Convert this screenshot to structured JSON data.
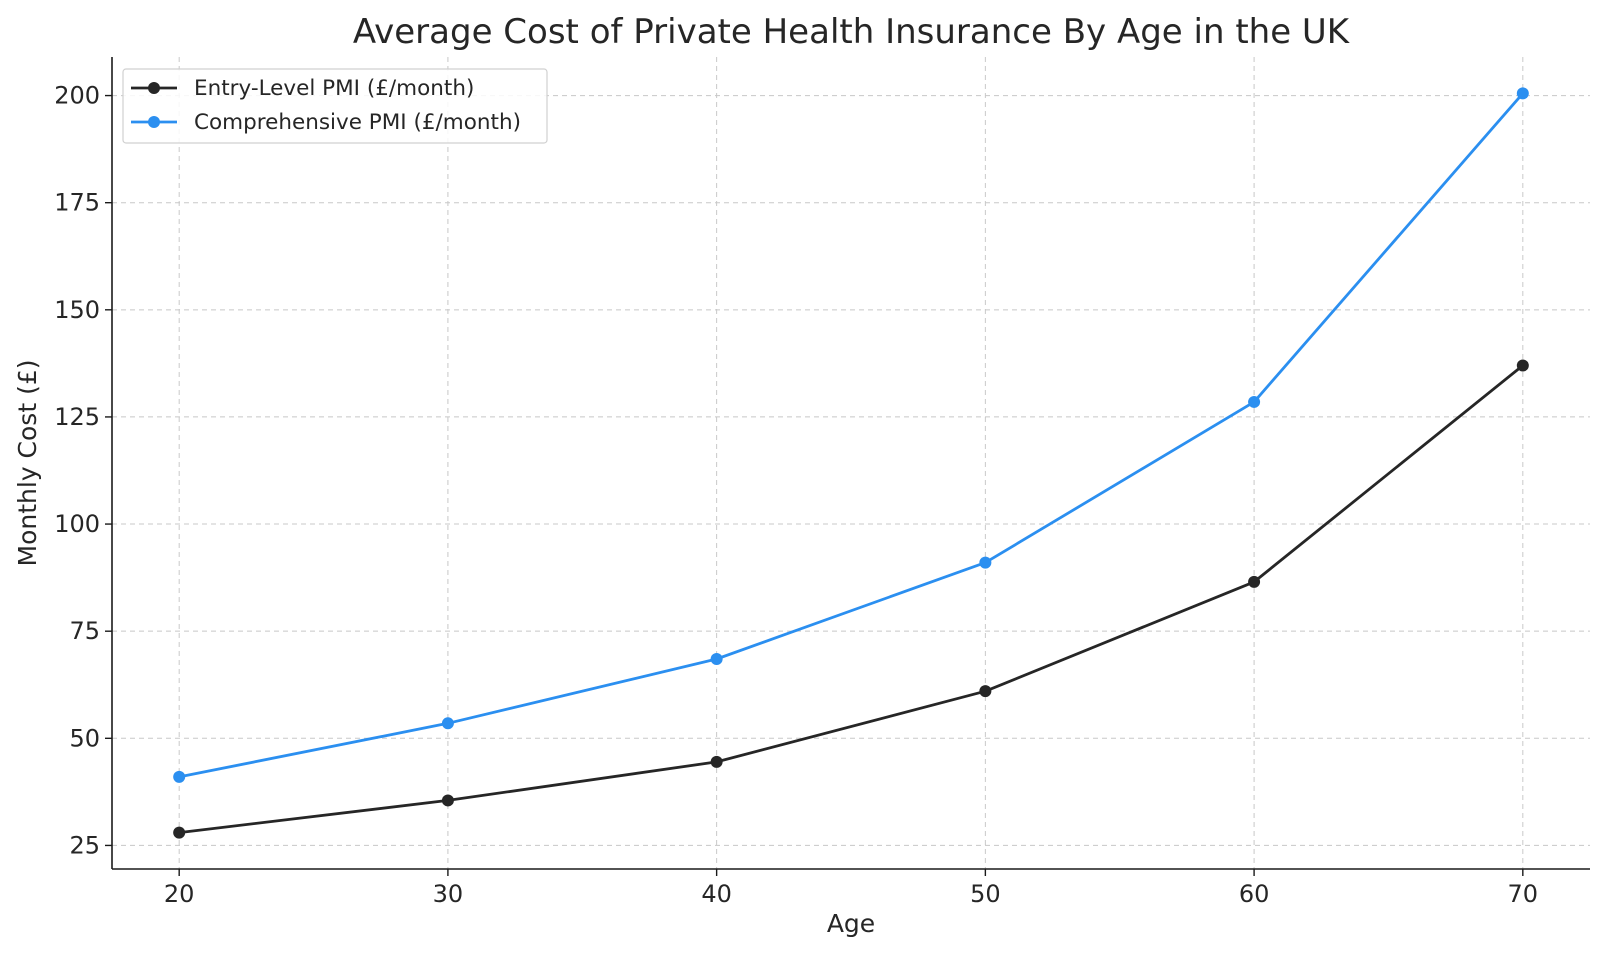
{
  "chart_data": {
    "type": "line",
    "title": "Average Cost of Private Health Insurance By Age in the UK",
    "xlabel": "Age",
    "ylabel": "Monthly Cost (£)",
    "x": [
      20,
      30,
      40,
      50,
      60,
      70
    ],
    "xticks": [
      "20",
      "30",
      "40",
      "50",
      "60",
      "70"
    ],
    "yticks": [
      "25",
      "50",
      "75",
      "100",
      "125",
      "150",
      "175",
      "200"
    ],
    "xlim": [
      17.5,
      72.5
    ],
    "ylim": [
      19.5,
      209
    ],
    "grid": true,
    "legend_position": "top-left",
    "series": [
      {
        "name": "Entry-Level PMI (£/month)",
        "color": "#262626",
        "values": [
          28,
          35.5,
          44.5,
          61,
          86.5,
          137
        ]
      },
      {
        "name": "Comprehensive PMI (£/month)",
        "color": "#2b8ff0",
        "values": [
          41,
          53.5,
          68.5,
          91,
          128.5,
          200.5
        ]
      }
    ]
  }
}
